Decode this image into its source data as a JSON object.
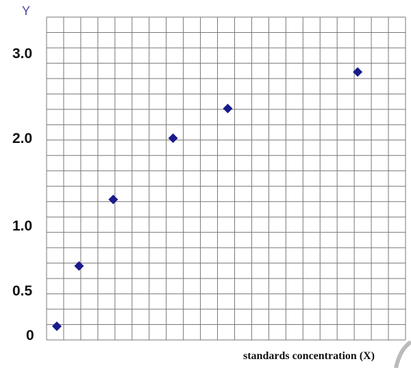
{
  "chart_data": {
    "type": "scatter",
    "title": "",
    "xlabel": "standards concentration (X)",
    "ylabel": "Y",
    "y_tick_labels": [
      "3.0",
      "2.0",
      "1.0",
      "0.5",
      "0"
    ],
    "x_tick_labels": [],
    "grid": true,
    "grid_columns": 21,
    "grid_rows": 21,
    "marker": "diamond",
    "marker_color": "#1a1a8c",
    "grid_color": "#777777",
    "points": [
      {
        "x": 0.6,
        "y": 0.1
      },
      {
        "x": 1.9,
        "y": 0.69
      },
      {
        "x": 3.9,
        "y": 1.3
      },
      {
        "x": 7.4,
        "y": 2.0
      },
      {
        "x": 10.6,
        "y": 2.35
      },
      {
        "x": 18.2,
        "y": 2.78
      }
    ],
    "legend": "none"
  }
}
